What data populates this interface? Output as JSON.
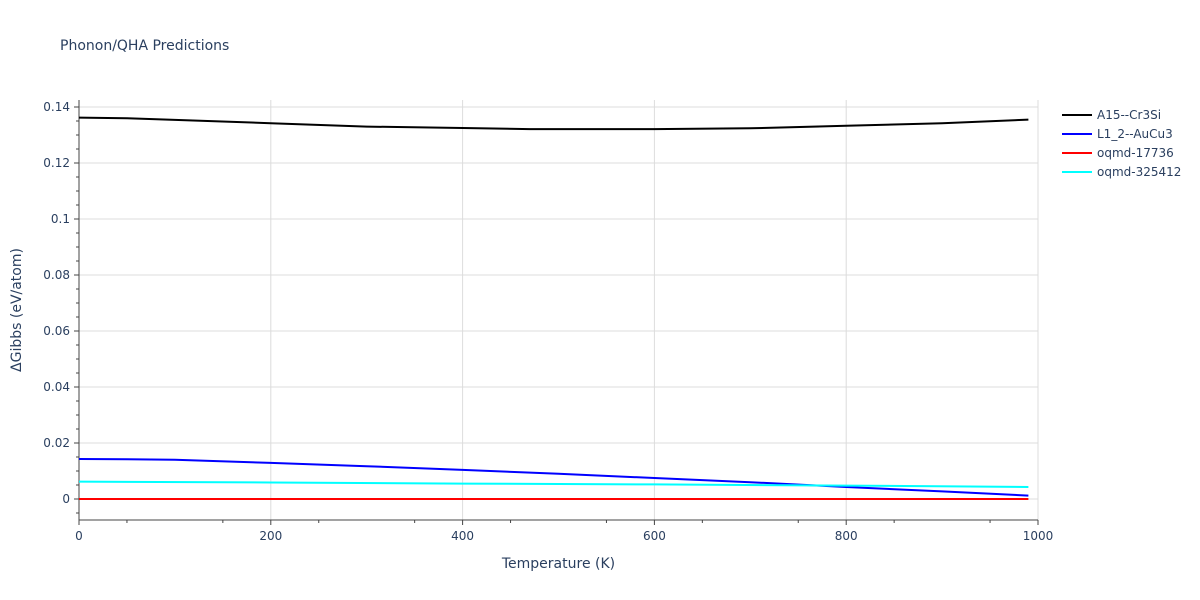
{
  "chart_data": {
    "type": "line",
    "title": "Phonon/QHA Predictions",
    "xlabel": "Temperature (K)",
    "ylabel": "ΔGibbs (eV/atom)",
    "xlim": [
      0,
      1000
    ],
    "ylim": [
      -0.0075,
      0.1425
    ],
    "x_ticks": [
      0,
      200,
      400,
      600,
      800,
      1000
    ],
    "x_tick_labels": [
      "0",
      "200",
      "400",
      "600",
      "800",
      "1000"
    ],
    "y_ticks": [
      0,
      0.02,
      0.04,
      0.06,
      0.08,
      0.1,
      0.12,
      0.14
    ],
    "y_tick_labels": [
      "0",
      "0.02",
      "0.04",
      "0.06",
      "0.08",
      "0.1",
      "0.12",
      "0.14"
    ],
    "grid": true,
    "legend_position": "top-right",
    "series": [
      {
        "name": "A15--Cr3Si",
        "color": "#000000",
        "points": [
          [
            0,
            0.1362
          ],
          [
            50,
            0.136
          ],
          [
            100,
            0.1354
          ],
          [
            200,
            0.1342
          ],
          [
            300,
            0.133
          ],
          [
            400,
            0.1325
          ],
          [
            470,
            0.1321
          ],
          [
            550,
            0.1321
          ],
          [
            600,
            0.1321
          ],
          [
            700,
            0.1324
          ],
          [
            800,
            0.1333
          ],
          [
            900,
            0.1342
          ],
          [
            990,
            0.1355
          ]
        ]
      },
      {
        "name": "L1_2--AuCu3",
        "color": "#0000ff",
        "points": [
          [
            0,
            0.0143
          ],
          [
            50,
            0.0142
          ],
          [
            100,
            0.014
          ],
          [
            200,
            0.0129
          ],
          [
            300,
            0.0117
          ],
          [
            400,
            0.0104
          ],
          [
            500,
            0.009
          ],
          [
            600,
            0.0075
          ],
          [
            700,
            0.006
          ],
          [
            800,
            0.0043
          ],
          [
            900,
            0.0027
          ],
          [
            990,
            0.0012
          ]
        ]
      },
      {
        "name": "oqmd-17736",
        "color": "#ff0000",
        "points": [
          [
            0,
            0.0
          ],
          [
            990,
            0.0
          ]
        ]
      },
      {
        "name": "oqmd-325412",
        "color": "#00ffff",
        "points": [
          [
            0,
            0.0062
          ],
          [
            200,
            0.0059
          ],
          [
            400,
            0.0055
          ],
          [
            600,
            0.0052
          ],
          [
            800,
            0.0048
          ],
          [
            990,
            0.0043
          ]
        ]
      }
    ]
  }
}
